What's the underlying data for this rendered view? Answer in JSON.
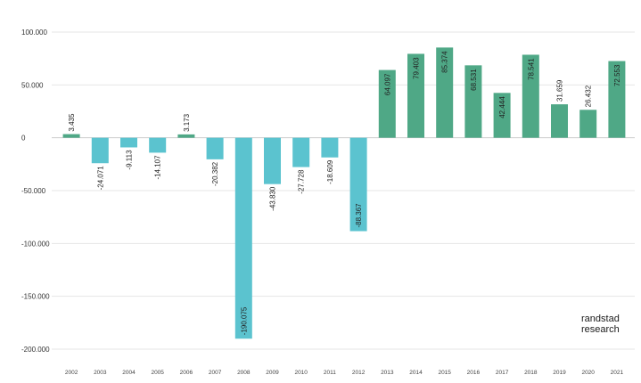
{
  "chart_data": {
    "type": "bar",
    "title": "",
    "xlabel": "",
    "ylabel": "",
    "categories": [
      "2002",
      "2003",
      "2004",
      "2005",
      "2006",
      "2007",
      "2008",
      "2009",
      "2010",
      "2011",
      "2012",
      "2013",
      "2014",
      "2015",
      "2016",
      "2017",
      "2018",
      "2019",
      "2020",
      "2021"
    ],
    "values": [
      3435,
      -24071,
      -9113,
      -14107,
      3173,
      -20382,
      -190075,
      -43830,
      -27728,
      -18609,
      -88367,
      64097,
      79403,
      85374,
      68531,
      42444,
      78541,
      31659,
      26432,
      72553
    ],
    "value_labels": [
      "3.435",
      "-24.071",
      "-9.113",
      "-14.107",
      "3.173",
      "-20.382",
      "-190.075",
      "-43.830",
      "-27.728",
      "-18.609",
      "-88.367",
      "64.097",
      "79.403",
      "85.374",
      "68.531",
      "42.444",
      "78.541",
      "31.659",
      "26.432",
      "72.553"
    ],
    "ylim": [
      -200000,
      100000
    ],
    "yticks": [
      100000,
      50000,
      0,
      -50000,
      -100000,
      -150000,
      -200000
    ],
    "ytick_labels": [
      "100.000",
      "50.000",
      "0",
      "-50.000",
      "-100.000",
      "-150.000",
      "-200.000"
    ],
    "grid": true,
    "colors": {
      "positive": "#4fa886",
      "negative": "#5bc3cf",
      "grid": "#e6e6e6",
      "zero": "#cccccc"
    }
  },
  "brand": {
    "line1": "randstad",
    "line2": "research"
  }
}
